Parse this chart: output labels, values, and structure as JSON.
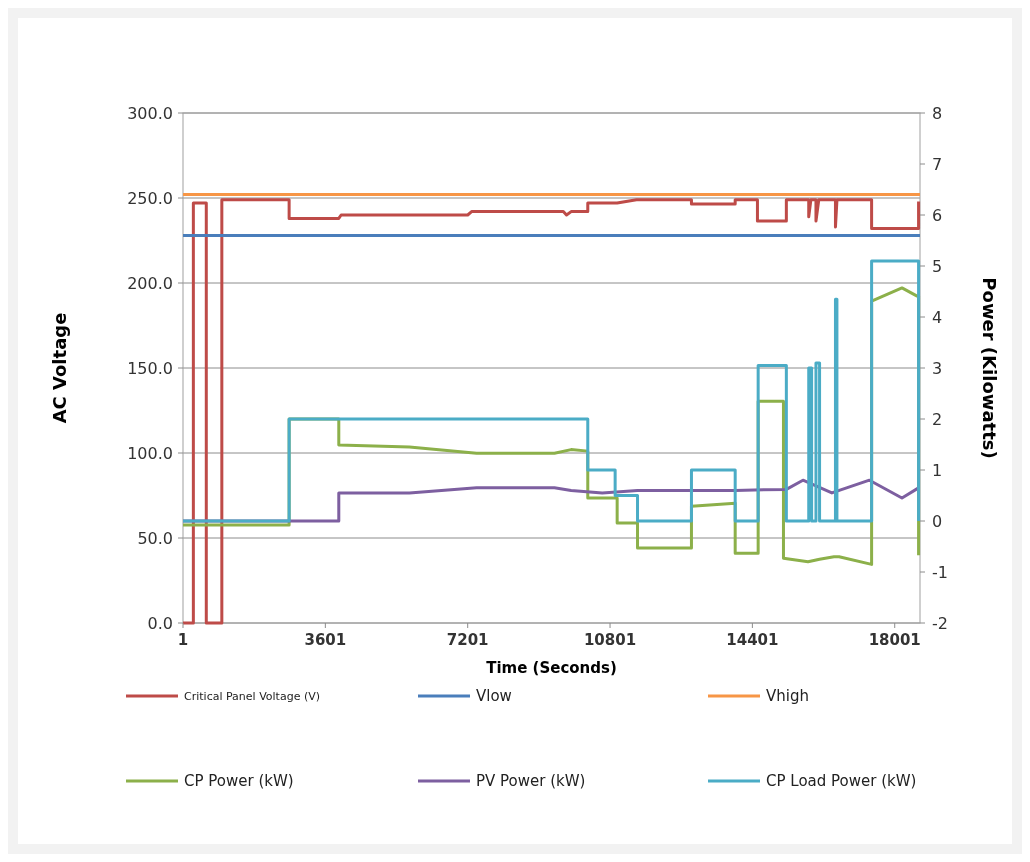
{
  "chart_data": {
    "type": "line",
    "xlabel": "Time (Seconds)",
    "ylabel": "AC Voltage",
    "y2label": "Power (Kilowatts)",
    "xlim": [
      1,
      18640
    ],
    "xticks": [
      1,
      3601,
      7201,
      10801,
      14401,
      18001
    ],
    "ylim": [
      0,
      300
    ],
    "yticks": [
      {
        "value": 0,
        "label": "0.0"
      },
      {
        "value": 50,
        "label": "50.0"
      },
      {
        "value": 100,
        "label": "100.0"
      },
      {
        "value": 150,
        "label": "150.0"
      },
      {
        "value": 200,
        "label": "200.0"
      },
      {
        "value": 250,
        "label": "250.0"
      },
      {
        "value": 300,
        "label": "300.0"
      }
    ],
    "y2lim": [
      -2,
      8
    ],
    "y2ticks": [
      -2,
      -1,
      0,
      1,
      2,
      3,
      4,
      5,
      6,
      7,
      8
    ],
    "grid": "y",
    "legend": "bottom",
    "line_style": "solid",
    "series": [
      {
        "name": "Critical Panel Voltage (V)",
        "color": "#be4b48",
        "x": [
          1,
          263,
          263,
          590,
          590,
          983,
          983,
          2685,
          2685,
          3941,
          4000,
          7201,
          7300,
          9620,
          9700,
          9817,
          10238,
          10238,
          10981,
          11470,
          12860,
          12860,
          13966,
          13966,
          14529,
          14529,
          15260,
          15260,
          15826,
          15826,
          15880,
          16009,
          16009,
          16080,
          16502,
          16502,
          16540,
          17416,
          17416,
          18604,
          18604
        ],
        "values": [
          0,
          0,
          247,
          247,
          0,
          0,
          249,
          249,
          238,
          238,
          240,
          240,
          242,
          242,
          240,
          242,
          242,
          247,
          247,
          249,
          249,
          246.5,
          246.5,
          249,
          249,
          236.5,
          236.5,
          249,
          249,
          239,
          249,
          249,
          236.5,
          249,
          249,
          233,
          249,
          249,
          232,
          232,
          248
        ]
      },
      {
        "name": "Vlow",
        "color": "#4a7ebb",
        "x": [
          1,
          18640
        ],
        "values": [
          228,
          228
        ]
      },
      {
        "name": "Vhigh",
        "color": "#f79646",
        "x": [
          1,
          18640
        ],
        "values": [
          252,
          252
        ]
      },
      {
        "name": "CP Power (kW)",
        "color": "#8cb04a",
        "axis": "y2",
        "x": [
          1,
          2685,
          2685,
          3941,
          3941,
          5727,
          7426,
          9395,
          9817,
          10238,
          10238,
          10981,
          10981,
          11496,
          11496,
          12860,
          12860,
          13966,
          13966,
          14547,
          14547,
          15187,
          15187,
          15808,
          16100,
          16465,
          16594,
          17416,
          17416,
          18184,
          18568,
          18604,
          18604
        ],
        "values": [
          -0.08,
          -0.08,
          2,
          2,
          1.49,
          1.45,
          1.33,
          1.33,
          1.4,
          1.37,
          0.45,
          0.45,
          -0.04,
          -0.04,
          -0.53,
          -0.53,
          0.29,
          0.35,
          -0.63,
          -0.63,
          2.35,
          2.35,
          -0.73,
          -0.8,
          -0.75,
          -0.7,
          -0.7,
          -0.85,
          4.31,
          4.57,
          4.41,
          4.41,
          -0.67
        ]
      },
      {
        "name": "PV Power (kW)",
        "color": "#7d5fa0",
        "axis": "y2",
        "x": [
          1,
          3941,
          3941,
          5727,
          6861,
          7426,
          9395,
          9817,
          10604,
          11496,
          13966,
          15260,
          15680,
          16411,
          17361,
          18184,
          18604
        ],
        "values": [
          0,
          0,
          0.55,
          0.55,
          0.62,
          0.65,
          0.65,
          0.6,
          0.55,
          0.6,
          0.6,
          0.62,
          0.8,
          0.55,
          0.8,
          0.45,
          0.65
        ]
      },
      {
        "name": "CP Load Power (kW)",
        "color": "#4bacc6",
        "axis": "y2",
        "x": [
          1,
          2685,
          2685,
          10238,
          10238,
          10930,
          10930,
          11496,
          11496,
          12860,
          12860,
          13966,
          13966,
          14547,
          14547,
          15260,
          15260,
          15826,
          15826,
          15899,
          15899,
          16009,
          16009,
          16100,
          16100,
          16137,
          16137,
          16502,
          16502,
          16539,
          16539,
          17416,
          17416,
          18604,
          18604
        ],
        "values": [
          0,
          0,
          2,
          2,
          1,
          1,
          0.5,
          0.5,
          0,
          0,
          1,
          1,
          0,
          0,
          3.05,
          3.05,
          0,
          0,
          3,
          3,
          0,
          0,
          3.1,
          3.1,
          0,
          0,
          0,
          0,
          4.35,
          4.35,
          0,
          0,
          5.1,
          5.1,
          0
        ]
      }
    ]
  }
}
